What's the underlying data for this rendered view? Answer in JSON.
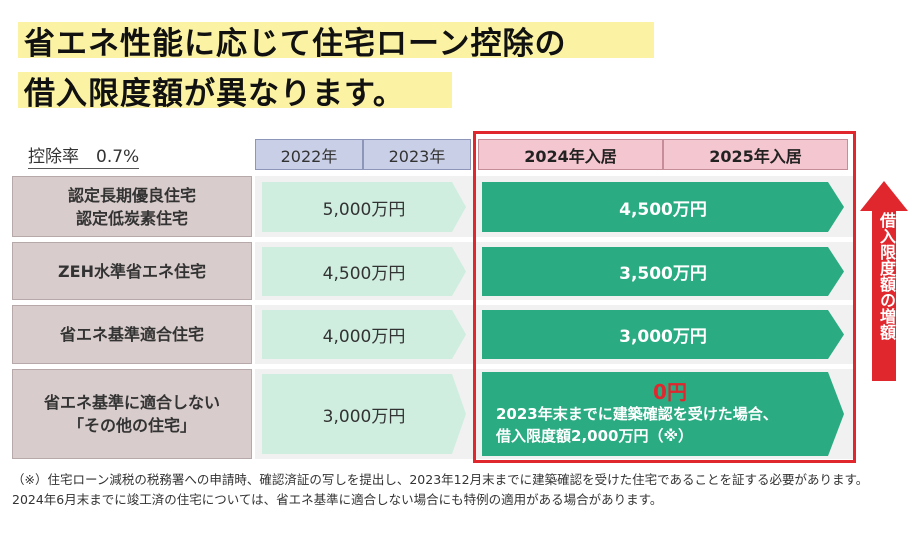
{
  "title": {
    "line1": "省エネ性能に応じて住宅ローン控除の",
    "line2": "借入限度額が異なります。"
  },
  "rate_label": "控除率　0.7%",
  "headers": {
    "y2022": "2022年",
    "y2023": "2023年",
    "y2024": "2024年入居",
    "y2025": "2025年入居"
  },
  "rows": [
    {
      "label_lines": [
        "認定長期優良住宅",
        "認定低炭素住宅"
      ],
      "old_value": "5,000万円",
      "new_value": "4,500万円"
    },
    {
      "label_lines": [
        "ZEH水準省エネ住宅"
      ],
      "old_value": "4,500万円",
      "new_value": "3,500万円"
    },
    {
      "label_lines": [
        "省エネ基準適合住宅"
      ],
      "old_value": "4,000万円",
      "new_value": "3,000万円"
    },
    {
      "label_lines": [
        "省エネ基準に適合しない",
        "「その他の住宅」"
      ],
      "old_value": "3,000万円",
      "new_value": "0円",
      "new_note_line1": "2023年末までに建築確認を受けた場合、",
      "new_note_line2": "借入限度額2,000万円（※）"
    }
  ],
  "side_label": "借入限度額の増額",
  "note": "（※）住宅ローン減税の税務署への申請時、確認済証の写しを提出し、2023年12月末までに建築確認を受けた住宅であることを証する必要があります。2024年6月末までに竣工済の住宅については、省エネ基準に適合しない場合にも特例の適用がある場合があります。",
  "colors": {
    "highlight": "#fbf3a3",
    "green": "#2aab82",
    "light_green": "#cfeee0",
    "red": "#e0272d"
  }
}
